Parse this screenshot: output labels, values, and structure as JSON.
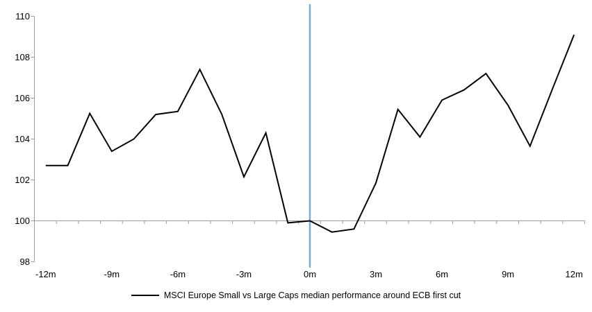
{
  "colors": {
    "background": "#ffffff",
    "series_line": "#000000",
    "event_line": "#78aad2",
    "axis": "#9b9b9b",
    "text": "#000000"
  },
  "legend": {
    "items": [
      {
        "label": "MSCI Europe Small vs Large Caps median performance around ECB first cut",
        "swatch_color": "#000000"
      }
    ]
  },
  "chart_data": {
    "type": "line",
    "title": "",
    "xlabel": "",
    "ylabel": "",
    "ylim": [
      98,
      110
    ],
    "y_ticks": [
      98,
      100,
      102,
      104,
      106,
      108,
      110
    ],
    "x_tick_months": [
      -12,
      -9,
      -6,
      -3,
      0,
      3,
      6,
      9,
      12
    ],
    "x_tick_labels": [
      "-12m",
      "-9m",
      "-6m",
      "-3m",
      "0m",
      "3m",
      "6m",
      "9m",
      "12m"
    ],
    "baseline_value": 100,
    "event_line_month": 0,
    "grid": "off",
    "legend_position": "bottom-center",
    "series": [
      {
        "name": "MSCI Europe Small vs Large Caps median performance around ECB first cut",
        "color": "#000000",
        "months": [
          -12,
          -11,
          -10,
          -9,
          -8,
          -7,
          -6,
          -5,
          -4,
          -3,
          -2,
          -1,
          0,
          1,
          2,
          3,
          4,
          5,
          6,
          7,
          8,
          9,
          10,
          11,
          12
        ],
        "values": [
          102.7,
          102.7,
          105.25,
          103.4,
          104.0,
          105.2,
          105.35,
          107.4,
          105.2,
          102.15,
          104.3,
          99.9,
          100.0,
          99.45,
          99.6,
          101.85,
          105.45,
          104.1,
          105.9,
          106.4,
          107.2,
          105.65,
          103.65,
          106.4,
          109.1
        ]
      }
    ]
  }
}
